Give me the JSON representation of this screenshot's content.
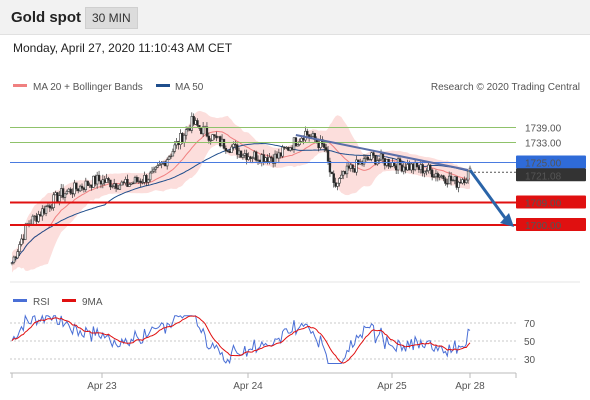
{
  "header": {
    "title": "Gold spot",
    "timeframe": "30 MIN"
  },
  "timestamp": "Monday, April 27, 2020 11:10:43 AM CET",
  "colors": {
    "bollinger": "#f08080",
    "ma50": "#1f4e8c",
    "resistance": "#8fc26a",
    "pivot": "#4a7be0",
    "support": "#e01010",
    "arrow": "#2a64a8",
    "rsi": "#4a6fd6",
    "rsi_ma": "#e01010"
  },
  "legend": {
    "bollinger_label": "MA 20 + Bollinger Bands",
    "ma50_label": "MA 50",
    "credit": "Research © 2020 Trading Central",
    "rsi_label": "RSI",
    "rsi_ma_label": "9MA"
  },
  "chart_data": {
    "type": "candlestick",
    "ylim": [
      1680,
      1750
    ],
    "x_labels": [
      "Apr 23",
      "Apr 24",
      "Apr 25",
      "Apr 28"
    ],
    "levels": [
      {
        "value": 1739.0,
        "label": "1739.00",
        "kind": "resistance"
      },
      {
        "value": 1733.0,
        "label": "1733.00",
        "kind": "resistance"
      },
      {
        "value": 1725.0,
        "label": "1725.00",
        "kind": "pivot"
      },
      {
        "value": 1721.08,
        "label": "1721.08",
        "kind": "last"
      },
      {
        "value": 1709.0,
        "label": "1709.00",
        "kind": "support"
      },
      {
        "value": 1700.0,
        "label": "1700.00",
        "kind": "support"
      }
    ],
    "last_price": 1721.08,
    "trendline": [
      1736,
      1722
    ],
    "arrow_target": 1700.0,
    "rsi": {
      "ylim": [
        20,
        80
      ],
      "ticks": [
        70,
        50,
        30
      ]
    }
  }
}
